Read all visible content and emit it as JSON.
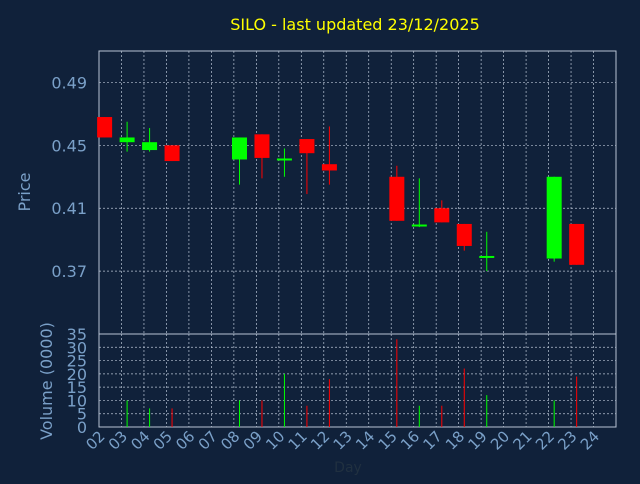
{
  "chart_data": {
    "type": "candlestick",
    "title": "SILO - last updated 23/12/2025",
    "xlabel": "Day",
    "price_panel": {
      "ylabel": "Price",
      "ylim": [
        0.33,
        0.51
      ],
      "yticks": [
        "0.49",
        "0.45",
        "0.41",
        "0.37"
      ]
    },
    "volume_panel": {
      "ylabel": "Volume (0000)",
      "ylim": [
        0,
        35
      ],
      "yticks": [
        "35",
        "30",
        "25",
        "20",
        "15",
        "10",
        "5",
        "0"
      ]
    },
    "x_ticks": [
      "02",
      "03",
      "04",
      "05",
      "06",
      "07",
      "08",
      "09",
      "10",
      "11",
      "12",
      "13",
      "14",
      "15",
      "16",
      "17",
      "18",
      "19",
      "20",
      "21",
      "22",
      "23",
      "24"
    ],
    "grid": true,
    "colors": {
      "background": "#10213a",
      "text": "#7aa0c8",
      "title": "#ffff00",
      "up": "#00ff00",
      "down": "#ff0000",
      "doji": "#00ff00",
      "grid": "#b8c4d4"
    },
    "candles": [
      {
        "day": "02",
        "open": 0.468,
        "high": 0.468,
        "low": 0.455,
        "close": 0.455,
        "volume": 0
      },
      {
        "day": "03",
        "open": 0.452,
        "high": 0.465,
        "low": 0.446,
        "close": 0.455,
        "volume": 10
      },
      {
        "day": "04",
        "open": 0.447,
        "high": 0.461,
        "low": 0.446,
        "close": 0.452,
        "volume": 7
      },
      {
        "day": "05",
        "open": 0.45,
        "high": 0.45,
        "low": 0.44,
        "close": 0.44,
        "volume": 7
      },
      {
        "day": "08",
        "open": 0.441,
        "high": 0.455,
        "low": 0.425,
        "close": 0.455,
        "volume": 10
      },
      {
        "day": "09",
        "open": 0.457,
        "high": 0.457,
        "low": 0.429,
        "close": 0.442,
        "volume": 10
      },
      {
        "day": "10",
        "open": 0.441,
        "high": 0.448,
        "low": 0.43,
        "close": 0.441,
        "volume": 20
      },
      {
        "day": "11",
        "open": 0.454,
        "high": 0.454,
        "low": 0.419,
        "close": 0.445,
        "volume": 8
      },
      {
        "day": "12",
        "open": 0.438,
        "high": 0.462,
        "low": 0.425,
        "close": 0.434,
        "volume": 18
      },
      {
        "day": "15",
        "open": 0.43,
        "high": 0.437,
        "low": 0.402,
        "close": 0.402,
        "volume": 33
      },
      {
        "day": "16",
        "open": 0.399,
        "high": 0.429,
        "low": 0.398,
        "close": 0.399,
        "volume": 8
      },
      {
        "day": "17",
        "open": 0.41,
        "high": 0.415,
        "low": 0.401,
        "close": 0.401,
        "volume": 8
      },
      {
        "day": "18",
        "open": 0.4,
        "high": 0.4,
        "low": 0.383,
        "close": 0.386,
        "volume": 22
      },
      {
        "day": "19",
        "open": 0.379,
        "high": 0.395,
        "low": 0.37,
        "close": 0.379,
        "volume": 12
      },
      {
        "day": "22",
        "open": 0.378,
        "high": 0.43,
        "low": 0.376,
        "close": 0.43,
        "volume": 10
      },
      {
        "day": "23",
        "open": 0.4,
        "high": 0.4,
        "low": 0.374,
        "close": 0.374,
        "volume": 19
      }
    ]
  }
}
